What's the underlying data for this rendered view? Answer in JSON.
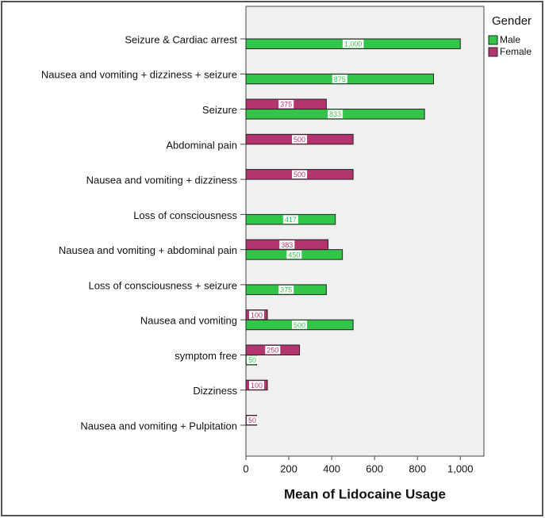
{
  "chart_data": {
    "type": "bar",
    "orientation": "horizontal",
    "categories": [
      "Seizure & Cardiac arrest",
      "Nausea and vomiting + dizziness + seizure",
      "Seizure",
      "Abdominal pain",
      "Nausea and vomiting + dizziness",
      "Loss of consciousness",
      "Nausea and vomiting  + abdominal pain",
      "Loss of consciousness + seizure",
      "Nausea and vomiting",
      "symptom free",
      "Dizziness",
      "Nausea and vomiting + Pulpitation"
    ],
    "series": [
      {
        "name": "Male",
        "color": "#33c44a",
        "values": [
          1000,
          875,
          833,
          null,
          null,
          417,
          450,
          375,
          500,
          50,
          null,
          null
        ],
        "value_labels": [
          "1,000",
          "875",
          "833",
          null,
          null,
          "417",
          "450",
          "375",
          "500",
          "50",
          null,
          null
        ]
      },
      {
        "name": "Female",
        "color": "#b3346f",
        "values": [
          null,
          null,
          375,
          500,
          500,
          null,
          383,
          null,
          100,
          250,
          100,
          50
        ],
        "value_labels": [
          null,
          null,
          "375",
          "500",
          "500",
          null,
          "383",
          null,
          "100",
          "250",
          "100",
          "50"
        ]
      }
    ],
    "x_label": "Mean of Lidocaine Usage",
    "legend_title": "Gender",
    "xlim": [
      0,
      1110
    ],
    "xticks": [
      0,
      200,
      400,
      600,
      800,
      {
        "value": 1000,
        "label": "1,000"
      }
    ]
  }
}
